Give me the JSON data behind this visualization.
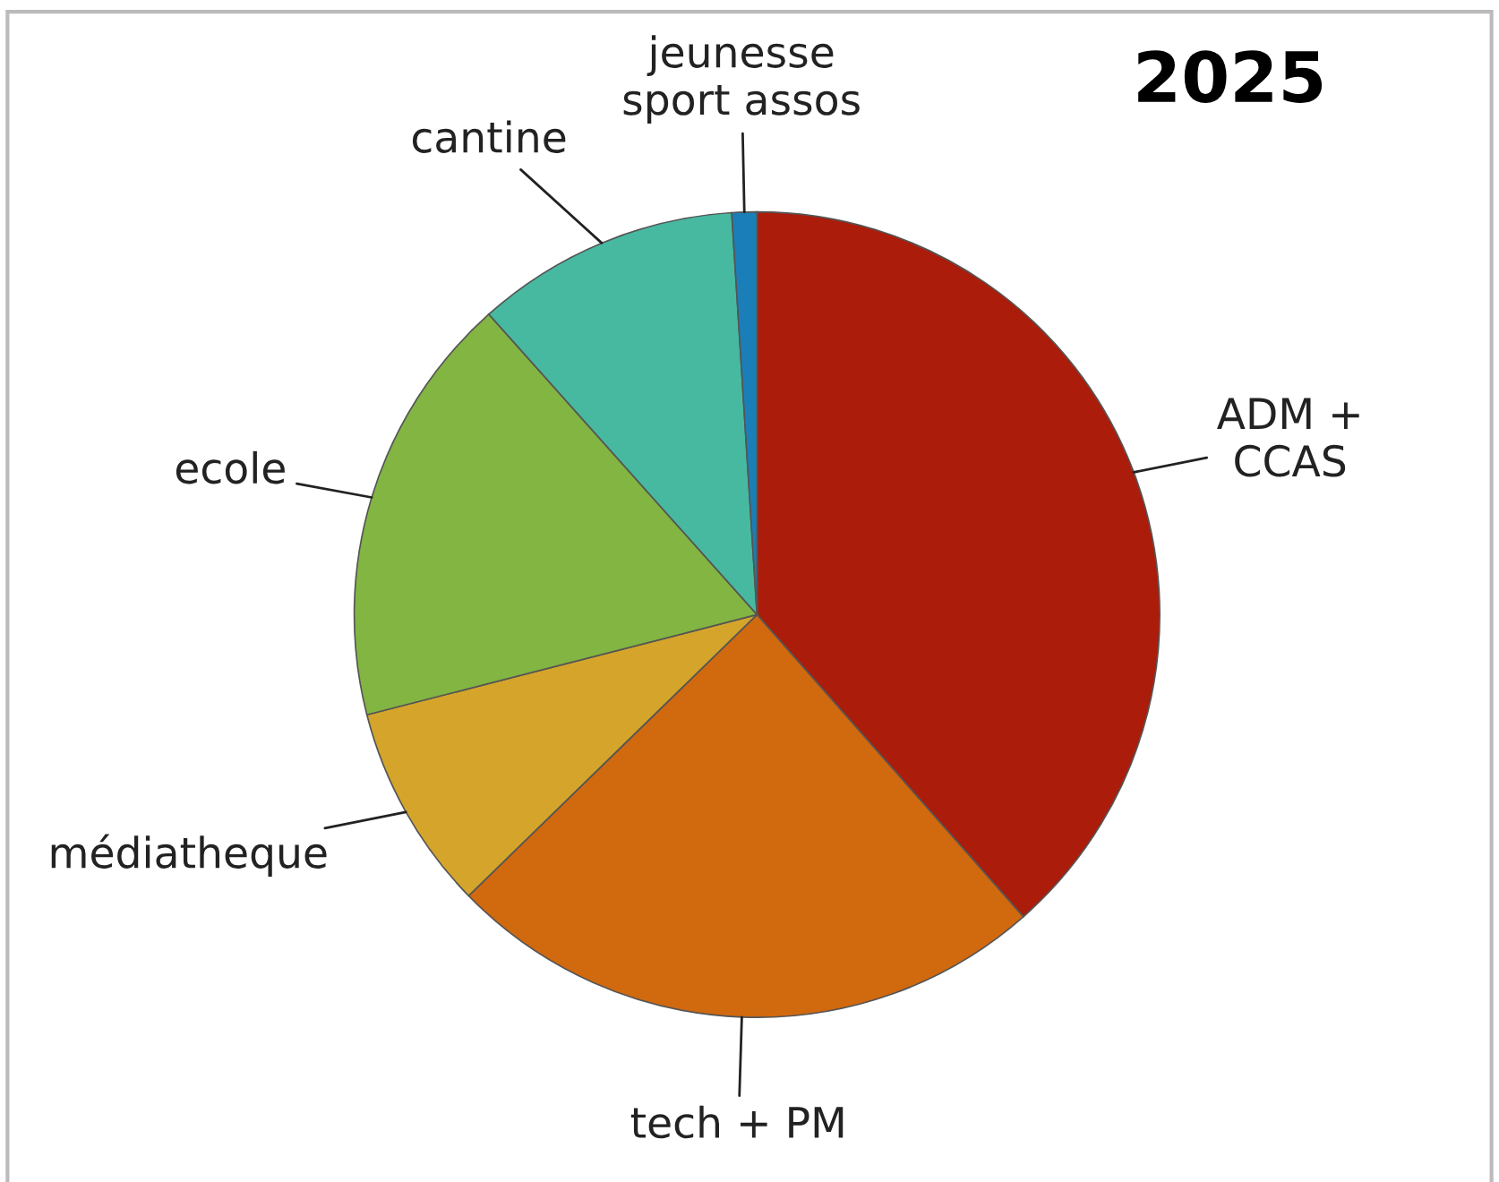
{
  "chart_data": {
    "type": "pie",
    "title": "2025",
    "categories": [
      "ADM +\nCCAS",
      "tech + PM",
      "médiatheque",
      "ecole",
      "cantine",
      "jeunesse\nsport assos"
    ],
    "values": [
      38.5,
      24.2,
      8.3,
      17.4,
      10.6,
      1.0
    ],
    "colors": [
      "#ab1c0a",
      "#d1690f",
      "#d4a52a",
      "#82b541",
      "#47b9a0",
      "#1a7fb8"
    ],
    "legend": false
  }
}
